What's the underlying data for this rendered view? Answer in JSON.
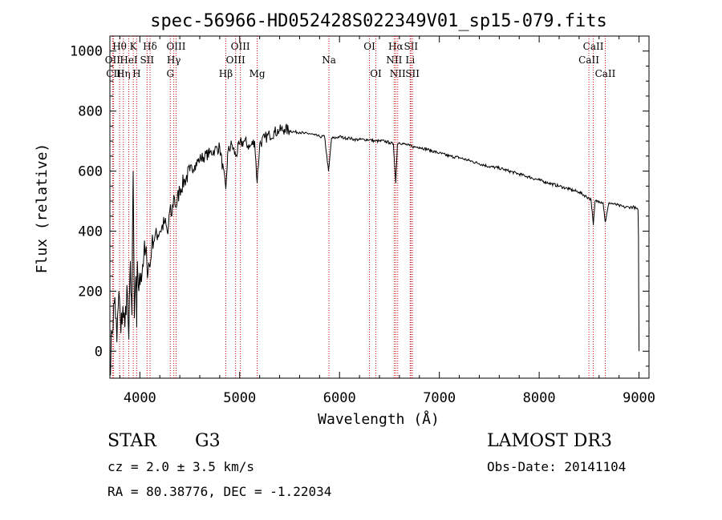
{
  "chart_data": {
    "type": "line",
    "title": "spec-56966-HD052428S022349V01_sp15-079.fits",
    "xlabel": "Wavelength (Å)",
    "ylabel": "Flux (relative)",
    "xlim": [
      3700,
      9100
    ],
    "ylim": [
      -90,
      1050
    ],
    "xticks": [
      4000,
      5000,
      6000,
      7000,
      8000,
      9000
    ],
    "yticks": [
      0,
      200,
      400,
      600,
      800,
      1000
    ],
    "grid": false,
    "line_color": "#000000",
    "marker_color": "#cc0000",
    "series": [
      {
        "x": [
          3700,
          3720,
          3750,
          3770,
          3790,
          3810,
          3830,
          3850,
          3870,
          3890,
          3905,
          3920,
          3933,
          3945,
          3960,
          3968,
          3975,
          3990,
          4010,
          4040,
          4070,
          4102,
          4120,
          4150,
          4200,
          4250,
          4280,
          4300,
          4320,
          4340,
          4360,
          4400,
          4450,
          4500,
          4550,
          4600,
          4650,
          4700,
          4750,
          4800,
          4861,
          4880,
          4920,
          4960,
          5000,
          5050,
          5100,
          5150,
          5175,
          5200,
          5250,
          5300,
          5350,
          5400,
          5450,
          5500,
          5550,
          5600,
          5650,
          5700,
          5750,
          5800,
          5850,
          5890,
          5896,
          5920,
          5950,
          6000,
          6050,
          6100,
          6150,
          6200,
          6250,
          6300,
          6350,
          6400,
          6450,
          6500,
          6540,
          6563,
          6580,
          6600,
          6650,
          6700,
          6750,
          6800,
          6900,
          7000,
          7100,
          7200,
          7300,
          7400,
          7500,
          7600,
          7700,
          7800,
          7900,
          8000,
          8100,
          8200,
          8300,
          8400,
          8498,
          8520,
          8542,
          8560,
          8600,
          8640,
          8662,
          8700,
          8750,
          8800,
          8850,
          8900,
          8950,
          8990,
          8995,
          9000
        ],
        "y": [
          -60,
          60,
          180,
          30,
          200,
          60,
          150,
          80,
          220,
          40,
          300,
          120,
          600,
          110,
          250,
          80,
          300,
          200,
          260,
          320,
          300,
          280,
          360,
          380,
          400,
          430,
          390,
          470,
          450,
          520,
          480,
          540,
          570,
          600,
          620,
          640,
          650,
          660,
          670,
          680,
          540,
          660,
          690,
          650,
          690,
          700,
          680,
          700,
          560,
          690,
          710,
          720,
          730,
          735,
          740,
          735,
          730,
          730,
          725,
          725,
          720,
          715,
          715,
          600,
          620,
          710,
          710,
          715,
          710,
          710,
          705,
          705,
          705,
          705,
          700,
          700,
          700,
          695,
          690,
          560,
          690,
          695,
          690,
          685,
          680,
          680,
          670,
          660,
          650,
          645,
          635,
          625,
          615,
          610,
          600,
          590,
          580,
          570,
          560,
          550,
          540,
          530,
          510,
          505,
          420,
          500,
          500,
          495,
          430,
          495,
          490,
          485,
          480,
          480,
          480,
          470,
          380,
          0
        ]
      }
    ],
    "lines": [
      {
        "label": "Hθ",
        "x": 3797,
        "row": 0
      },
      {
        "label": "OII",
        "x": 3727,
        "row": 1
      },
      {
        "label": "CII",
        "x": 3737,
        "row": 2
      },
      {
        "label": "Hη",
        "x": 3835,
        "row": 2
      },
      {
        "label": "HeI",
        "x": 3889,
        "row": 1
      },
      {
        "label": "K",
        "x": 3934,
        "row": 0
      },
      {
        "label": "H",
        "x": 3968,
        "row": 2
      },
      {
        "label": "Hδ",
        "x": 4102,
        "row": 0
      },
      {
        "label": "SII",
        "x": 4072,
        "row": 1
      },
      {
        "label": "OIII",
        "x": 4363,
        "row": 0
      },
      {
        "label": "Hγ",
        "x": 4340,
        "row": 1
      },
      {
        "label": "G",
        "x": 4305,
        "row": 2
      },
      {
        "label": "Hβ",
        "x": 4861,
        "row": 2
      },
      {
        "label": "OIII",
        "x": 5007,
        "row": 0
      },
      {
        "label": "OIII",
        "x": 4959,
        "row": 1
      },
      {
        "label": "Mg",
        "x": 5175,
        "row": 2
      },
      {
        "label": "Na",
        "x": 5894,
        "row": 1
      },
      {
        "label": "OI",
        "x": 6300,
        "row": 0
      },
      {
        "label": "OI",
        "x": 6364,
        "row": 2
      },
      {
        "label": "Hα",
        "x": 6563,
        "row": 0
      },
      {
        "label": "NII",
        "x": 6548,
        "row": 1
      },
      {
        "label": "NII",
        "x": 6583,
        "row": 2
      },
      {
        "label": "SII",
        "x": 6716,
        "row": 0
      },
      {
        "label": "Li",
        "x": 6708,
        "row": 1
      },
      {
        "label": "SII",
        "x": 6731,
        "row": 2
      },
      {
        "label": "CaII",
        "x": 8542,
        "row": 0
      },
      {
        "label": "CaII",
        "x": 8498,
        "row": 1
      },
      {
        "label": "CaII",
        "x": 8662,
        "row": 2
      }
    ]
  },
  "info": {
    "object_class": "STAR",
    "subclass": "G3",
    "survey": "LAMOST DR3",
    "redshift_line": "cz = 2.0 ± 3.5 km/s",
    "obs_date_line": "Obs-Date: 20141104",
    "coords_line": "RA =  80.38776, DEC =  -1.22034"
  }
}
